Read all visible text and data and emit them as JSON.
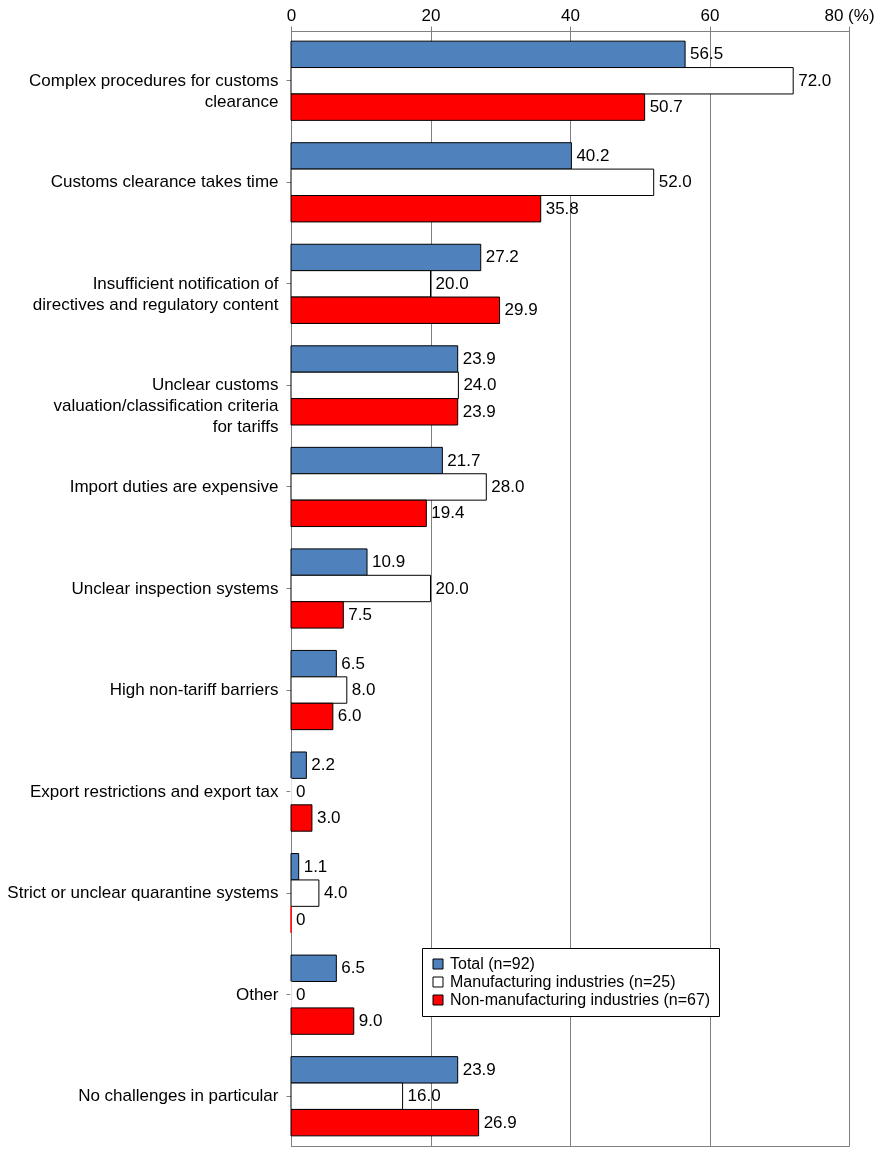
{
  "chart_data": {
    "type": "bar",
    "orientation": "horizontal",
    "categories": [
      "Complex procedures for customs clearance",
      "Customs clearance takes time",
      "Insufficient notification of directives and regulatory content",
      "Unclear customs valuation/classification criteria for tariffs",
      "Import duties are expensive",
      "Unclear inspection systems",
      "High non-tariff barriers",
      "Export restrictions and export tax",
      "Strict or unclear quarantine systems",
      "Other",
      "No challenges in particular"
    ],
    "series": [
      {
        "name": "Total (n=92)",
        "color": "#4f81bd",
        "values": [
          56.5,
          40.2,
          27.2,
          23.9,
          21.7,
          10.9,
          6.5,
          2.2,
          1.1,
          6.5,
          23.9
        ],
        "value_labels": [
          "56.5",
          "40.2",
          "27.2",
          "23.9",
          "21.7",
          "10.9",
          "6.5",
          "2.2",
          "1.1",
          "6.5",
          "23.9"
        ]
      },
      {
        "name": "Manufacturing industries (n=25)",
        "color": "#ffffff",
        "values": [
          72.0,
          52.0,
          20.0,
          24.0,
          28.0,
          20.0,
          8.0,
          0,
          4.0,
          0,
          16.0
        ],
        "value_labels": [
          "72.0",
          "52.0",
          "20.0",
          "24.0",
          "28.0",
          "20.0",
          "8.0",
          "0",
          "4.0",
          "0",
          "16.0"
        ]
      },
      {
        "name": "Non-manufacturing industries (n=67)",
        "color": "#ff0000",
        "values": [
          50.7,
          35.8,
          29.9,
          23.9,
          19.4,
          7.5,
          6.0,
          3.0,
          0,
          9.0,
          26.9
        ],
        "value_labels": [
          "50.7",
          "35.8",
          "29.9",
          "23.9",
          "19.4",
          "7.5",
          "6.0",
          "3.0",
          "0",
          "9.0",
          "26.9"
        ]
      }
    ],
    "xlim": [
      0,
      80
    ],
    "xticks": [
      0,
      20,
      40,
      60,
      {
        "value": 80,
        "label": "80 (%)"
      }
    ],
    "grid": "x",
    "legend": "bottom right"
  }
}
